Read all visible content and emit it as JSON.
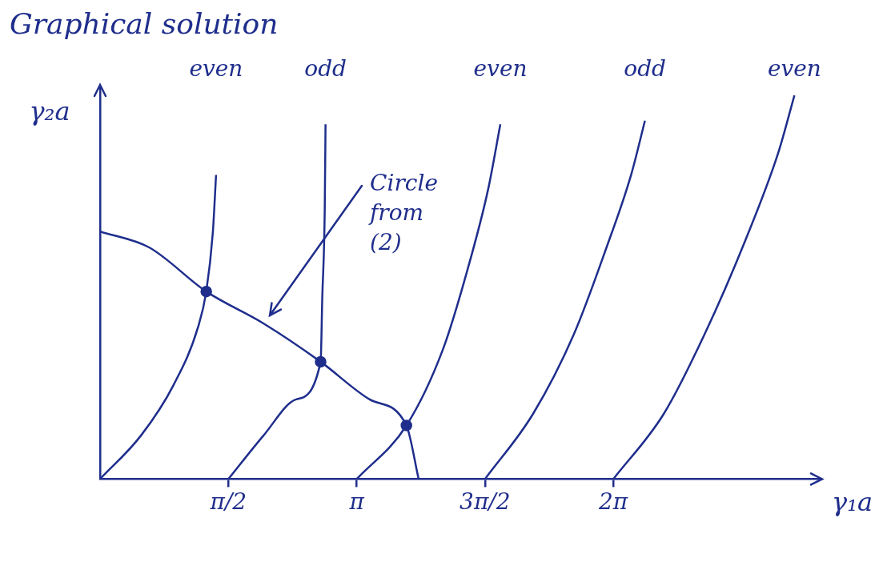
{
  "chart_data": {
    "type": "line",
    "title": "Graphical solution",
    "x_label": "γ₁a",
    "y_label": "γ₂a",
    "color": "#1f2e8c",
    "grid": false,
    "tick_labels": "x",
    "xlim": [
      0,
      8.8
    ],
    "ylim": [
      0,
      5.4
    ],
    "xticks": [
      {
        "value": 1.571,
        "label": "π/2"
      },
      {
        "value": 3.142,
        "label": "π"
      },
      {
        "value": 4.712,
        "label": "3π/2"
      },
      {
        "value": 6.283,
        "label": "2π"
      }
    ],
    "annotations": [
      {
        "text": "Circle from (2)"
      }
    ],
    "series": [
      {
        "name": "even",
        "x": [
          0,
          0.5,
          0.9,
          1.2,
          1.3,
          1.38,
          1.42
        ],
        "values": [
          0,
          0.6,
          1.3,
          2.1,
          2.59,
          3.4,
          4.2
        ]
      },
      {
        "name": "odd",
        "x": [
          1.571,
          2.0,
          2.4,
          2.7,
          2.72,
          2.75,
          2.76
        ],
        "values": [
          0,
          0.6,
          1.1,
          1.62,
          2.5,
          3.7,
          4.9
        ]
      },
      {
        "name": "even",
        "x": [
          3.142,
          3.75,
          4.2,
          4.5,
          4.75,
          4.9
        ],
        "values": [
          0,
          0.74,
          1.8,
          2.9,
          4.0,
          4.9
        ]
      },
      {
        "name": "odd",
        "x": [
          4.712,
          5.3,
          5.8,
          6.2,
          6.5,
          6.67
        ],
        "values": [
          0,
          0.9,
          2.0,
          3.2,
          4.2,
          4.95
        ]
      },
      {
        "name": "even",
        "x": [
          6.283,
          6.9,
          7.4,
          7.9,
          8.3,
          8.5
        ],
        "values": [
          0,
          0.9,
          2.0,
          3.3,
          4.5,
          5.3
        ]
      },
      {
        "x": [
          0,
          0.6,
          1.3,
          2.0,
          2.7,
          3.3,
          3.75,
          3.9
        ],
        "values": [
          3.42,
          3.2,
          2.59,
          2.15,
          1.62,
          1.1,
          0.74,
          0
        ]
      },
      {
        "type": "scatter",
        "marker": "circle",
        "x": [
          1.3,
          2.7,
          3.75
        ],
        "values": [
          2.59,
          1.62,
          0.74
        ]
      }
    ]
  }
}
